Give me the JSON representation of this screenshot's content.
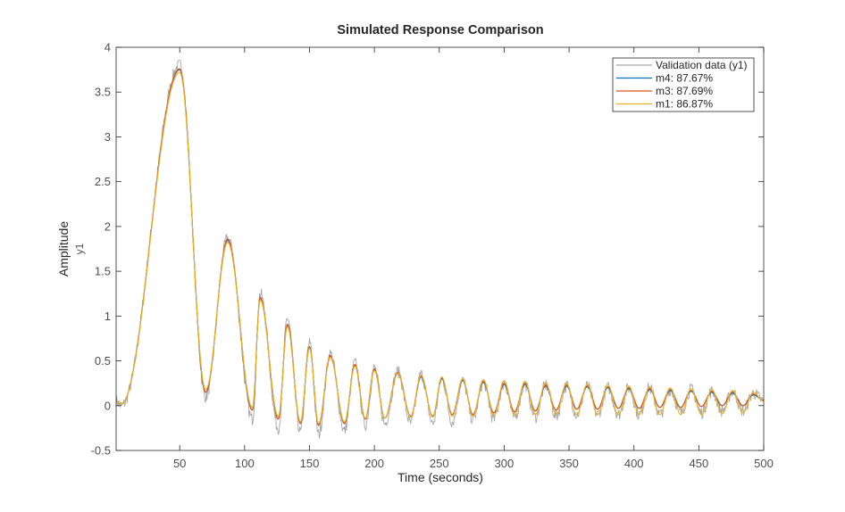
{
  "chart_data": {
    "type": "line",
    "title": "Simulated Response Comparison",
    "xlabel": "Time (seconds)",
    "ylabel": "Amplitude",
    "ylabel_sub": "y1",
    "xlim": [
      1,
      500
    ],
    "ylim": [
      -0.5,
      4
    ],
    "xticks": [
      50,
      100,
      150,
      200,
      250,
      300,
      350,
      400,
      450,
      500
    ],
    "yticks": [
      -0.5,
      0,
      0.5,
      1,
      1.5,
      2,
      2.5,
      3,
      3.5,
      4
    ],
    "grid": false,
    "legend_position": "top-right",
    "series": [
      {
        "name": "Validation data (y1)",
        "color": "#a6a6a6",
        "noisy": true,
        "peaks": [
          [
            1,
            0.05
          ],
          [
            5,
            0.0
          ],
          [
            50,
            3.8
          ],
          [
            70,
            0.1
          ],
          [
            87,
            1.87
          ],
          [
            106,
            -0.15
          ],
          [
            112,
            1.25
          ],
          [
            126,
            -0.25
          ],
          [
            133,
            0.98
          ],
          [
            143,
            -0.3
          ],
          [
            150,
            0.7
          ],
          [
            157,
            -0.32
          ],
          [
            166,
            0.58
          ],
          [
            177,
            -0.28
          ],
          [
            185,
            0.48
          ],
          [
            193,
            -0.22
          ],
          [
            200,
            0.42
          ],
          [
            208,
            -0.2
          ],
          [
            218,
            0.38
          ],
          [
            228,
            -0.2
          ],
          [
            236,
            0.35
          ],
          [
            245,
            -0.2
          ],
          [
            252,
            0.3
          ],
          [
            260,
            -0.18
          ],
          [
            268,
            0.28
          ],
          [
            276,
            -0.16
          ],
          [
            284,
            0.26
          ],
          [
            292,
            -0.15
          ],
          [
            300,
            0.25
          ],
          [
            308,
            -0.14
          ],
          [
            316,
            0.24
          ],
          [
            324,
            -0.13
          ],
          [
            332,
            0.23
          ],
          [
            340,
            -0.12
          ],
          [
            348,
            0.22
          ],
          [
            356,
            -0.1
          ],
          [
            364,
            0.22
          ],
          [
            372,
            -0.1
          ],
          [
            380,
            0.2
          ],
          [
            388,
            -0.1
          ],
          [
            396,
            0.2
          ],
          [
            404,
            -0.1
          ],
          [
            412,
            0.2
          ],
          [
            420,
            -0.1
          ],
          [
            428,
            0.18
          ],
          [
            436,
            -0.08
          ],
          [
            444,
            0.18
          ],
          [
            452,
            -0.08
          ],
          [
            460,
            0.16
          ],
          [
            468,
            -0.06
          ],
          [
            476,
            0.16
          ],
          [
            484,
            -0.06
          ],
          [
            492,
            0.14
          ],
          [
            500,
            0.05
          ]
        ]
      },
      {
        "name": "m4: 87.67%",
        "color": "#0072bd",
        "noisy": false,
        "peaks": [
          [
            1,
            0.05
          ],
          [
            5,
            0.02
          ],
          [
            50,
            3.75
          ],
          [
            70,
            0.15
          ],
          [
            87,
            1.85
          ],
          [
            106,
            -0.05
          ],
          [
            112,
            1.2
          ],
          [
            126,
            -0.15
          ],
          [
            133,
            0.9
          ],
          [
            143,
            -0.2
          ],
          [
            150,
            0.65
          ],
          [
            157,
            -0.22
          ],
          [
            166,
            0.55
          ],
          [
            177,
            -0.2
          ],
          [
            185,
            0.45
          ],
          [
            193,
            -0.15
          ],
          [
            200,
            0.4
          ],
          [
            208,
            -0.14
          ],
          [
            218,
            0.36
          ],
          [
            228,
            -0.12
          ],
          [
            236,
            0.32
          ],
          [
            245,
            -0.12
          ],
          [
            252,
            0.3
          ],
          [
            260,
            -0.1
          ],
          [
            268,
            0.28
          ],
          [
            276,
            -0.1
          ],
          [
            284,
            0.26
          ],
          [
            292,
            -0.08
          ],
          [
            300,
            0.24
          ],
          [
            308,
            -0.07
          ],
          [
            316,
            0.24
          ],
          [
            324,
            -0.06
          ],
          [
            332,
            0.22
          ],
          [
            340,
            -0.05
          ],
          [
            348,
            0.22
          ],
          [
            356,
            -0.04
          ],
          [
            364,
            0.21
          ],
          [
            372,
            -0.04
          ],
          [
            380,
            0.2
          ],
          [
            388,
            -0.03
          ],
          [
            396,
            0.19
          ],
          [
            404,
            -0.03
          ],
          [
            412,
            0.18
          ],
          [
            420,
            -0.02
          ],
          [
            428,
            0.17
          ],
          [
            436,
            -0.02
          ],
          [
            444,
            0.16
          ],
          [
            452,
            -0.01
          ],
          [
            460,
            0.15
          ],
          [
            468,
            0.0
          ],
          [
            476,
            0.14
          ],
          [
            484,
            0.0
          ],
          [
            492,
            0.12
          ],
          [
            500,
            0.06
          ]
        ]
      },
      {
        "name": "m3: 87.69%",
        "color": "#d95319",
        "noisy": false,
        "peaks": [
          [
            1,
            0.05
          ],
          [
            5,
            0.02
          ],
          [
            50,
            3.76
          ],
          [
            70,
            0.15
          ],
          [
            87,
            1.86
          ],
          [
            106,
            -0.05
          ],
          [
            112,
            1.21
          ],
          [
            126,
            -0.15
          ],
          [
            133,
            0.91
          ],
          [
            143,
            -0.2
          ],
          [
            150,
            0.66
          ],
          [
            157,
            -0.22
          ],
          [
            166,
            0.56
          ],
          [
            177,
            -0.2
          ],
          [
            185,
            0.46
          ],
          [
            193,
            -0.15
          ],
          [
            200,
            0.41
          ],
          [
            208,
            -0.14
          ],
          [
            218,
            0.37
          ],
          [
            228,
            -0.12
          ],
          [
            236,
            0.33
          ],
          [
            245,
            -0.12
          ],
          [
            252,
            0.31
          ],
          [
            260,
            -0.1
          ],
          [
            268,
            0.29
          ],
          [
            276,
            -0.1
          ],
          [
            284,
            0.27
          ],
          [
            292,
            -0.08
          ],
          [
            300,
            0.25
          ],
          [
            308,
            -0.07
          ],
          [
            316,
            0.25
          ],
          [
            324,
            -0.06
          ],
          [
            332,
            0.23
          ],
          [
            340,
            -0.05
          ],
          [
            348,
            0.23
          ],
          [
            356,
            -0.04
          ],
          [
            364,
            0.22
          ],
          [
            372,
            -0.04
          ],
          [
            380,
            0.21
          ],
          [
            388,
            -0.03
          ],
          [
            396,
            0.2
          ],
          [
            404,
            -0.03
          ],
          [
            412,
            0.19
          ],
          [
            420,
            -0.02
          ],
          [
            428,
            0.18
          ],
          [
            436,
            -0.02
          ],
          [
            444,
            0.17
          ],
          [
            452,
            -0.01
          ],
          [
            460,
            0.16
          ],
          [
            468,
            0.0
          ],
          [
            476,
            0.15
          ],
          [
            484,
            0.0
          ],
          [
            492,
            0.13
          ],
          [
            500,
            0.06
          ]
        ]
      },
      {
        "name": "m1: 86.87%",
        "color": "#edb120",
        "noisy": false,
        "peaks": [
          [
            1,
            0.05
          ],
          [
            5,
            0.02
          ],
          [
            50,
            3.72
          ],
          [
            70,
            0.18
          ],
          [
            87,
            1.82
          ],
          [
            106,
            -0.02
          ],
          [
            112,
            1.18
          ],
          [
            126,
            -0.12
          ],
          [
            133,
            0.88
          ],
          [
            143,
            -0.18
          ],
          [
            150,
            0.64
          ],
          [
            157,
            -0.2
          ],
          [
            166,
            0.54
          ],
          [
            177,
            -0.18
          ],
          [
            185,
            0.44
          ],
          [
            193,
            -0.14
          ],
          [
            200,
            0.39
          ],
          [
            208,
            -0.14
          ],
          [
            218,
            0.36
          ],
          [
            228,
            -0.13
          ],
          [
            236,
            0.34
          ],
          [
            245,
            -0.13
          ],
          [
            252,
            0.32
          ],
          [
            260,
            -0.12
          ],
          [
            268,
            0.3
          ],
          [
            276,
            -0.12
          ],
          [
            284,
            0.29
          ],
          [
            292,
            -0.11
          ],
          [
            300,
            0.28
          ],
          [
            308,
            -0.11
          ],
          [
            316,
            0.27
          ],
          [
            324,
            -0.1
          ],
          [
            332,
            0.26
          ],
          [
            340,
            -0.1
          ],
          [
            348,
            0.25
          ],
          [
            356,
            -0.1
          ],
          [
            364,
            0.24
          ],
          [
            372,
            -0.1
          ],
          [
            380,
            0.23
          ],
          [
            388,
            -0.1
          ],
          [
            396,
            0.22
          ],
          [
            404,
            -0.1
          ],
          [
            412,
            0.21
          ],
          [
            420,
            -0.1
          ],
          [
            428,
            0.2
          ],
          [
            436,
            -0.1
          ],
          [
            444,
            0.19
          ],
          [
            452,
            -0.1
          ],
          [
            460,
            0.18
          ],
          [
            468,
            -0.09
          ],
          [
            476,
            0.17
          ],
          [
            484,
            -0.08
          ],
          [
            492,
            0.15
          ],
          [
            500,
            0.05
          ]
        ]
      }
    ]
  }
}
